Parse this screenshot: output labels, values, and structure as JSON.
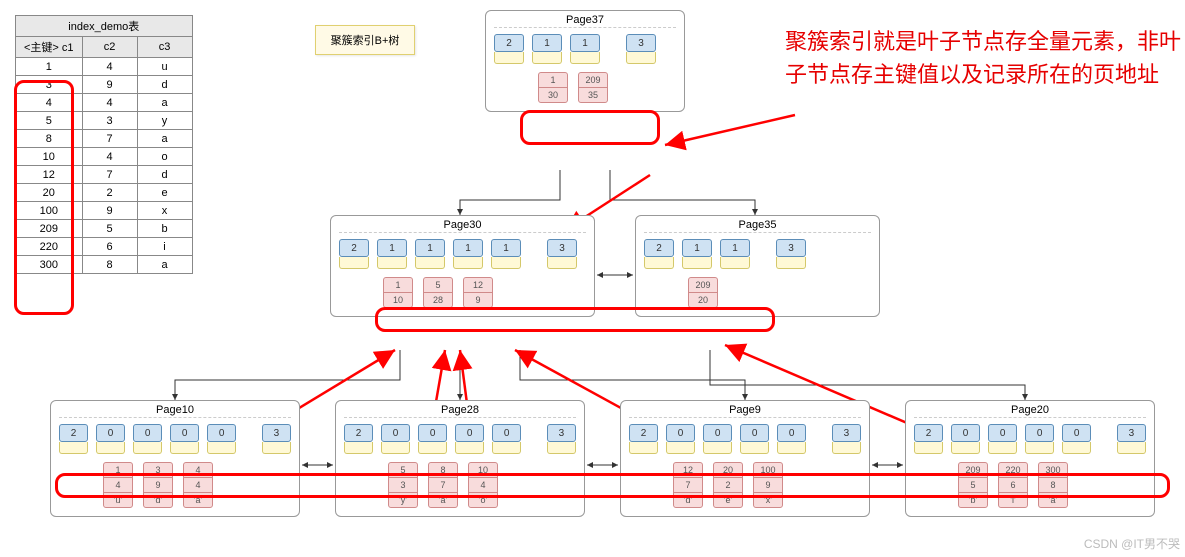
{
  "table": {
    "title": "index_demo表",
    "headers": [
      "<主键>\nc1",
      "c2",
      "c3"
    ],
    "rows": [
      [
        "1",
        "4",
        "u"
      ],
      [
        "3",
        "9",
        "d"
      ],
      [
        "4",
        "4",
        "a"
      ],
      [
        "5",
        "3",
        "y"
      ],
      [
        "8",
        "7",
        "a"
      ],
      [
        "10",
        "4",
        "o"
      ],
      [
        "12",
        "7",
        "d"
      ],
      [
        "20",
        "2",
        "e"
      ],
      [
        "100",
        "9",
        "x"
      ],
      [
        "209",
        "5",
        "b"
      ],
      [
        "220",
        "6",
        "i"
      ],
      [
        "300",
        "8",
        "a"
      ]
    ]
  },
  "note_label": "聚簇索引B+树",
  "annotation_text": "聚簇索引就是叶子节点存全量元素，非叶子节点存主键值以及记录所在的页地址",
  "colors": {
    "header_cell_bg": "#cfe2f3",
    "header_cell_border": "#5b8db8",
    "header_cell_bot_bg": "#fff9d6",
    "header_cell_bot_border": "#d4c86a",
    "data_cell_bg": "#f8dcdc",
    "data_cell_border": "#d08a8a",
    "note_bg": "#fffae6",
    "annotation_color": "#e60000",
    "highlight_border": "#ff0000",
    "arrow_red": "#ff0000",
    "arrow_black": "#333333"
  },
  "pages": {
    "p37": {
      "title": "Page37",
      "header_cells": [
        "2",
        "1",
        "1",
        "3"
      ],
      "index_entries": [
        [
          "1",
          "30"
        ],
        [
          "209",
          "35"
        ]
      ]
    },
    "p30": {
      "title": "Page30",
      "header_cells": [
        "2",
        "1",
        "1",
        "1",
        "1",
        "3"
      ],
      "index_entries": [
        [
          "1",
          "10"
        ],
        [
          "5",
          "28"
        ],
        [
          "12",
          "9"
        ]
      ]
    },
    "p35": {
      "title": "Page35",
      "header_cells": [
        "2",
        "1",
        "1",
        "3"
      ],
      "index_entries": [
        [
          "209",
          "20"
        ]
      ]
    },
    "p10": {
      "title": "Page10",
      "header_cells": [
        "2",
        "0",
        "0",
        "0",
        "0",
        "3"
      ],
      "leaf_entries": [
        [
          "1",
          "4",
          "'u'"
        ],
        [
          "3",
          "9",
          "'d'"
        ],
        [
          "4",
          "4",
          "'a'"
        ]
      ]
    },
    "p28": {
      "title": "Page28",
      "header_cells": [
        "2",
        "0",
        "0",
        "0",
        "0",
        "3"
      ],
      "leaf_entries": [
        [
          "5",
          "3",
          "'y'"
        ],
        [
          "8",
          "7",
          "'a'"
        ],
        [
          "10",
          "4",
          "'o'"
        ]
      ]
    },
    "p9": {
      "title": "Page9",
      "header_cells": [
        "2",
        "0",
        "0",
        "0",
        "0",
        "3"
      ],
      "leaf_entries": [
        [
          "12",
          "7",
          "'d'"
        ],
        [
          "20",
          "2",
          "'e'"
        ],
        [
          "100",
          "9",
          "'x'"
        ]
      ]
    },
    "p20": {
      "title": "Page20",
      "header_cells": [
        "2",
        "0",
        "0",
        "0",
        "0",
        "3"
      ],
      "leaf_entries": [
        [
          "209",
          "5",
          "'b'"
        ],
        [
          "220",
          "6",
          "'i'"
        ],
        [
          "300",
          "8",
          "'a'"
        ]
      ]
    }
  },
  "watermark": "CSDN @IT男不哭"
}
